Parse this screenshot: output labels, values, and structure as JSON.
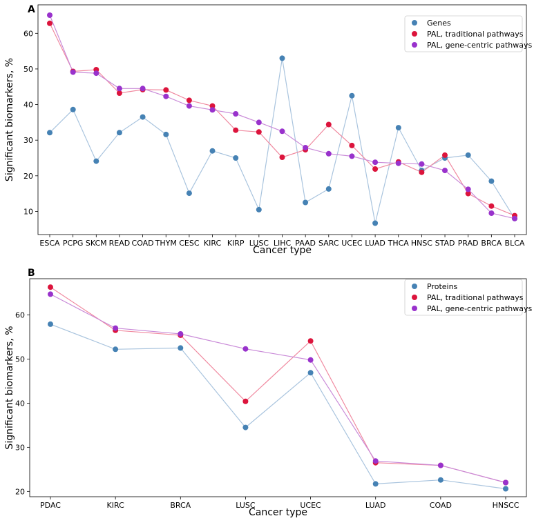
{
  "chart_data": [
    {
      "panel_label": "A",
      "type": "line",
      "xlabel": "Cancer type",
      "ylabel": "Significant biomarkers, %",
      "categories": [
        "ESCA",
        "PCPG",
        "SKCM",
        "READ",
        "COAD",
        "THYM",
        "CESC",
        "KIRC",
        "KIRP",
        "LUSC",
        "LIHC",
        "PAAD",
        "SARC",
        "UCEC",
        "LUAD",
        "THCA",
        "HNSC",
        "STAD",
        "PRAD",
        "BRCA",
        "BLCA"
      ],
      "ylim": [
        3.5,
        68
      ],
      "yticks": [
        10,
        20,
        30,
        40,
        50,
        60
      ],
      "grid": false,
      "legend_position": "top-right",
      "series": [
        {
          "name": "Genes",
          "color": "#4682b4",
          "line_color": "#a9c4de",
          "values": [
            32.1,
            38.6,
            24.1,
            32.1,
            36.5,
            31.6,
            15.1,
            27.0,
            25.0,
            10.5,
            53.0,
            12.5,
            16.3,
            42.5,
            6.7,
            33.5,
            21.5,
            25.0,
            25.8,
            18.5,
            8.0
          ]
        },
        {
          "name": "PAL, traditional pathways",
          "color": "#dc143c",
          "line_color": "#f08aa0",
          "values": [
            62.8,
            49.3,
            49.8,
            43.2,
            44.2,
            44.1,
            41.2,
            39.6,
            32.8,
            32.3,
            25.2,
            27.3,
            34.4,
            28.5,
            21.9,
            23.9,
            21.0,
            25.8,
            15.0,
            11.5,
            8.8
          ]
        },
        {
          "name": "PAL, gene-centric pathways",
          "color": "#9932cc",
          "line_color": "#c98ad8",
          "values": [
            65.1,
            49.1,
            48.8,
            44.5,
            44.5,
            42.3,
            39.6,
            38.5,
            37.4,
            35.0,
            32.5,
            27.9,
            26.2,
            25.5,
            23.8,
            23.5,
            23.3,
            21.5,
            16.2,
            9.5,
            8.0
          ]
        }
      ]
    },
    {
      "panel_label": "B",
      "type": "line",
      "xlabel": "Cancer type",
      "ylabel": "Significant biomarkers, %",
      "categories": [
        "PDAC",
        "KIRC",
        "BRCA",
        "LUSC",
        "UCEC",
        "LUAD",
        "COAD",
        "HNSCC"
      ],
      "ylim": [
        18.8,
        68.2
      ],
      "yticks": [
        20,
        30,
        40,
        50,
        60
      ],
      "grid": false,
      "legend_position": "top-right",
      "series": [
        {
          "name": "Proteins",
          "color": "#4682b4",
          "line_color": "#a9c4de",
          "values": [
            57.9,
            52.2,
            52.5,
            34.5,
            46.9,
            21.7,
            22.6,
            20.6
          ]
        },
        {
          "name": "PAL, traditional pathways",
          "color": "#dc143c",
          "line_color": "#f08aa0",
          "values": [
            66.3,
            56.5,
            55.4,
            40.4,
            54.1,
            26.5,
            25.9,
            22.0
          ]
        },
        {
          "name": "PAL, gene-centric pathways",
          "color": "#9932cc",
          "line_color": "#c98ad8",
          "values": [
            64.7,
            57.0,
            55.7,
            52.3,
            49.8,
            26.9,
            25.9,
            22.0
          ]
        }
      ]
    }
  ]
}
